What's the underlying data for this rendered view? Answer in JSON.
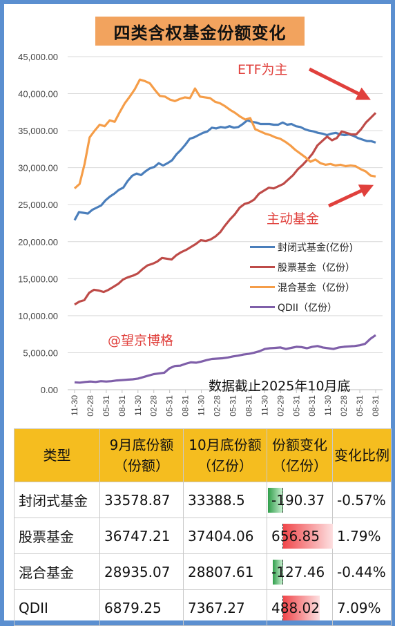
{
  "title": "四类含权基金份额变化",
  "annotations": {
    "etf": "ETF为主",
    "active": "主动基金",
    "watermark": "@望京博格",
    "note": "数据截止2025年10月底"
  },
  "colors": {
    "closed": "#4a7ebb",
    "stock": "#be4b48",
    "mixed": "#f59d48",
    "qdii": "#7f5fa9",
    "header": "#f5bd1f",
    "accent": "#e0403c"
  },
  "chart_data": {
    "type": "line",
    "title": "四类含权基金份额变化",
    "ylim": [
      0,
      45000
    ],
    "yticks": [
      "0.00",
      "5,000.00",
      "10,000.00",
      "15,000.00",
      "20,000.00",
      "25,000.00",
      "30,000.00",
      "35,000.00",
      "40,000.00",
      "45,000.00"
    ],
    "xtick_labels": [
      "11-30",
      "02-28",
      "05-31",
      "08-31",
      "11-30",
      "02-28",
      "05-31",
      "08-31",
      "11-30",
      "02-28",
      "05-31",
      "08-31",
      "11-30",
      "02-29",
      "05-31",
      "08-31",
      "11-30",
      "02-28",
      "05-31",
      "08-31"
    ],
    "legend_position": "right-middle",
    "grid": true,
    "series": [
      {
        "name": "封闭式基金(亿份)",
        "color": "#4a7ebb",
        "values": [
          22900,
          24000,
          23900,
          23800,
          24300,
          24600,
          24900,
          25600,
          26100,
          26500,
          27000,
          27300,
          28200,
          28900,
          29200,
          29000,
          29500,
          29900,
          30100,
          30600,
          30300,
          30600,
          31000,
          31800,
          32400,
          33100,
          33900,
          34100,
          34400,
          34700,
          34900,
          35400,
          35300,
          35500,
          35400,
          35600,
          35400,
          35500,
          35900,
          36400,
          36200,
          36100,
          35900,
          35900,
          35900,
          35800,
          35800,
          36100,
          35800,
          35900,
          35600,
          35500,
          35200,
          35000,
          34900,
          34700,
          34600,
          34400,
          34600,
          34700,
          34500,
          34400,
          34500,
          34300,
          34000,
          33800,
          33600,
          33578,
          33388
        ]
      },
      {
        "name": "股票基金（亿份）",
        "color": "#be4b48",
        "values": [
          11500,
          11900,
          12100,
          13100,
          13500,
          13400,
          13200,
          13500,
          13900,
          14300,
          14900,
          15200,
          15400,
          15700,
          16300,
          16800,
          17000,
          17300,
          17800,
          17700,
          17600,
          18200,
          18600,
          18900,
          19300,
          19700,
          20200,
          20100,
          20300,
          20700,
          21300,
          22200,
          23000,
          23700,
          24600,
          25100,
          25300,
          25700,
          26500,
          26900,
          27300,
          27200,
          27500,
          27800,
          28400,
          29000,
          29800,
          30400,
          31100,
          31900,
          33000,
          33600,
          34200,
          33700,
          34000,
          34900,
          34700,
          34500,
          34500,
          35200,
          36100,
          36747,
          37404
        ]
      },
      {
        "name": "混合基金（亿份）",
        "color": "#f59d48",
        "values": [
          27200,
          27800,
          30500,
          34100,
          35000,
          35800,
          35600,
          36400,
          36200,
          37500,
          38700,
          39600,
          40600,
          41900,
          41700,
          41400,
          40500,
          39700,
          39600,
          39200,
          39000,
          39300,
          39500,
          39400,
          40700,
          39600,
          39500,
          39400,
          38900,
          38700,
          38300,
          37800,
          37400,
          36900,
          36500,
          36700,
          35200,
          34900,
          34600,
          34400,
          34100,
          33900,
          33500,
          33000,
          32400,
          31900,
          31400,
          30800,
          31100,
          30600,
          30400,
          30500,
          30300,
          30400,
          30200,
          30300,
          30200,
          29800,
          29500,
          28935,
          28807
        ]
      },
      {
        "name": "QDII（亿份）",
        "color": "#7f5fa9",
        "values": [
          1000,
          950,
          1050,
          1100,
          1050,
          1150,
          1100,
          1150,
          1250,
          1300,
          1350,
          1400,
          1500,
          1700,
          1900,
          2100,
          2200,
          2300,
          2900,
          3200,
          3250,
          3500,
          3700,
          3650,
          3800,
          4000,
          4150,
          4200,
          4250,
          4350,
          4500,
          4600,
          4750,
          4850,
          5000,
          5200,
          5500,
          5600,
          5650,
          5700,
          5500,
          5650,
          5800,
          5750,
          5600,
          5800,
          5900,
          5700,
          5600,
          5500,
          5700,
          5800,
          5850,
          5900,
          6000,
          6200,
          6879,
          7367
        ]
      }
    ]
  },
  "table": {
    "headers": [
      "类型",
      "9月底份额\n（份额）",
      "10月底份额\n（亿份）",
      "份额变化\n（亿份）",
      "变化比例"
    ],
    "rows": [
      {
        "type": "封闭式基金",
        "sep": "33578.87",
        "oct": "33388.5",
        "change": "-190.37",
        "change_value": -190.37,
        "pct": "-0.57%"
      },
      {
        "type": "股票基金",
        "sep": "36747.21",
        "oct": "37404.06",
        "change": "656.85",
        "change_value": 656.85,
        "pct": "1.79%"
      },
      {
        "type": "混合基金",
        "sep": "28935.07",
        "oct": "28807.61",
        "change": "-127.46",
        "change_value": -127.46,
        "pct": "-0.44%"
      },
      {
        "type": "QDII",
        "sep": "6879.25",
        "oct": "7367.27",
        "change": "488.02",
        "change_value": 488.02,
        "pct": "7.09%"
      }
    ]
  }
}
